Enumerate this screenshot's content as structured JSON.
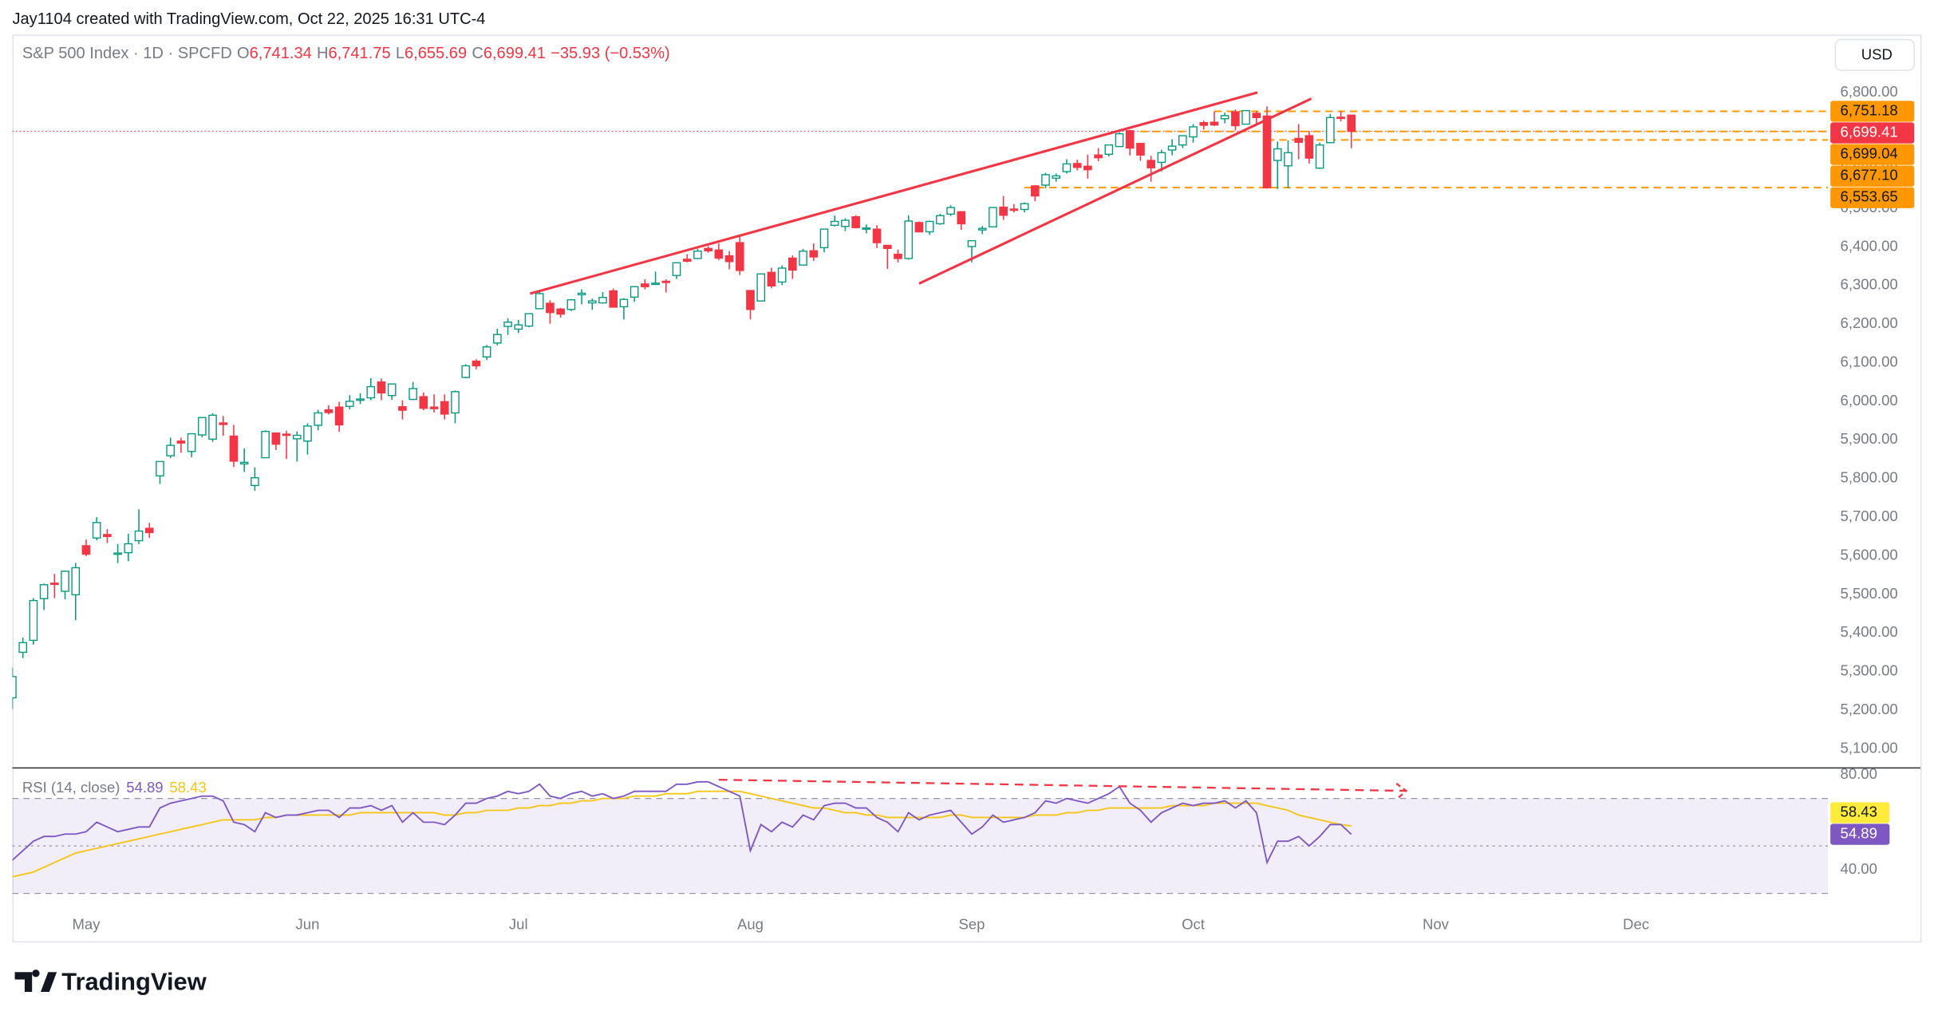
{
  "attribution": "Jay1104 created with TradingView.com, Oct 22, 2025 16:31 UTC-4",
  "currency": "USD",
  "logo": "TradingView",
  "chart_data": {
    "type": "candlestick",
    "legend": {
      "symbol": "S&P 500 Index · 1D · SPCFD",
      "items": [
        {
          "key": "O",
          "value": "6,741.34"
        },
        {
          "key": "H",
          "value": "6,741.75"
        },
        {
          "key": "L",
          "value": "6,655.69"
        },
        {
          "key": "C",
          "value": "6,699.41"
        }
      ],
      "change": "−35.93 (−0.53%)"
    },
    "open": [
      5232,
      5350,
      5381,
      5489,
      5529,
      5508,
      5499,
      5626,
      5646,
      5655,
      5605,
      5608,
      5639,
      5671,
      5807,
      5859,
      5897,
      5870,
      5913,
      5902,
      5944,
      5910,
      5838,
      5782,
      5854,
      5918,
      5915,
      5903,
      5897,
      5938,
      5978,
      5985,
      5987,
      6005,
      6009,
      6050,
      6015,
      5986,
      6005,
      6012,
      5985,
      5999,
      5970,
      6062,
      6104,
      6115,
      6151,
      6194,
      6187,
      6195,
      6240,
      6254,
      6239,
      6238,
      6276,
      6255,
      6255,
      6286,
      6245,
      6270,
      6304,
      6305,
      6311,
      6326,
      6368,
      6370,
      6396,
      6392,
      6377,
      6411,
      6287,
      6260,
      6334,
      6309,
      6371,
      6353,
      6390,
      6398,
      6456,
      6453,
      6478,
      6446,
      6446,
      6404,
      6381,
      6370,
      6463,
      6439,
      6460,
      6485,
      6491,
      6401,
      6444,
      6452,
      6503,
      6498,
      6497,
      6558,
      6560,
      6578,
      6595,
      6616,
      6609,
      6638,
      6640,
      6660,
      6701,
      6668,
      6624,
      6619,
      6651,
      6664,
      6685,
      6722,
      6723,
      6732,
      6750,
      6718,
      6746,
      6739,
      6624,
      6610,
      6681,
      6688,
      6604,
      6670,
      6736,
      6741.34
    ],
    "high": [
      5310,
      5388,
      5490,
      5528,
      5553,
      5562,
      5581,
      5642,
      5700,
      5669,
      5630,
      5657,
      5720,
      5685,
      5845,
      5906,
      5906,
      5917,
      5959,
      5969,
      5962,
      5939,
      5878,
      5829,
      5925,
      5919,
      5924,
      5922,
      5943,
      5978,
      5990,
      5999,
      6016,
      6021,
      6060,
      6059,
      6046,
      6003,
      6050,
      6023,
      6018,
      6018,
      6028,
      6096,
      6109,
      6146,
      6188,
      6215,
      6211,
      6228,
      6285,
      6262,
      6242,
      6265,
      6290,
      6266,
      6283,
      6292,
      6267,
      6297,
      6316,
      6336,
      6316,
      6360,
      6381,
      6395,
      6402,
      6409,
      6389,
      6427,
      6288,
      6331,
      6346,
      6352,
      6378,
      6395,
      6409,
      6447,
      6481,
      6474,
      6482,
      6458,
      6456,
      6404,
      6393,
      6482,
      6466,
      6468,
      6486,
      6508,
      6493,
      6416,
      6454,
      6503,
      6532,
      6511,
      6515,
      6560,
      6592,
      6590,
      6627,
      6626,
      6639,
      6656,
      6665,
      6697,
      6703,
      6670,
      6636,
      6652,
      6679,
      6689,
      6718,
      6727,
      6751,
      6748,
      6756,
      6754,
      6751,
      6764,
      6673,
      6676,
      6718,
      6700,
      6670,
      6744,
      6752,
      6741.75
    ],
    "low": [
      5203,
      5335,
      5370,
      5459,
      5490,
      5487,
      5433,
      5599,
      5640,
      5633,
      5581,
      5586,
      5630,
      5646,
      5786,
      5853,
      5867,
      5855,
      5907,
      5895,
      5911,
      5830,
      5817,
      5768,
      5853,
      5874,
      5851,
      5844,
      5862,
      5925,
      5966,
      5921,
      5979,
      5993,
      6003,
      6003,
      6004,
      5953,
      6003,
      5977,
      5971,
      5953,
      5943,
      6060,
      6083,
      6107,
      6145,
      6172,
      6177,
      6192,
      6240,
      6201,
      6217,
      6234,
      6251,
      6237,
      6253,
      6243,
      6212,
      6258,
      6290,
      6303,
      6282,
      6317,
      6360,
      6368,
      6385,
      6366,
      6342,
      6327,
      6212,
      6260,
      6293,
      6301,
      6317,
      6353,
      6364,
      6386,
      6453,
      6441,
      6448,
      6435,
      6397,
      6343,
      6360,
      6367,
      6438,
      6431,
      6457,
      6480,
      6444,
      6360,
      6433,
      6451,
      6470,
      6489,
      6489,
      6518,
      6552,
      6569,
      6590,
      6598,
      6577,
      6622,
      6634,
      6659,
      6637,
      6623,
      6569,
      6595,
      6637,
      6656,
      6670,
      6704,
      6713,
      6720,
      6702,
      6717,
      6717,
      6551,
      6550,
      6552,
      6627,
      6616,
      6602,
      6669,
      6725,
      6655.69
    ],
    "close": [
      5287,
      5375,
      5484,
      5525,
      5528,
      5560,
      5569,
      5604,
      5686,
      5650,
      5607,
      5631,
      5664,
      5660,
      5844,
      5886,
      5892,
      5916,
      5958,
      5964,
      5940,
      5845,
      5842,
      5802,
      5922,
      5889,
      5912,
      5912,
      5936,
      5970,
      5971,
      5939,
      6000,
      6006,
      6038,
      6022,
      6045,
      5977,
      6033,
      5982,
      5981,
      5967,
      6025,
      6092,
      6092,
      6141,
      6173,
      6205,
      6198,
      6227,
      6279,
      6230,
      6226,
      6263,
      6280,
      6260,
      6269,
      6244,
      6264,
      6297,
      6297,
      6306,
      6309,
      6359,
      6363,
      6389,
      6390,
      6371,
      6362,
      6339,
      6238,
      6330,
      6299,
      6345,
      6340,
      6389,
      6374,
      6446,
      6466,
      6469,
      6450,
      6449,
      6411,
      6396,
      6370,
      6467,
      6439,
      6466,
      6481,
      6502,
      6460,
      6416,
      6448,
      6502,
      6482,
      6495,
      6512,
      6532,
      6587,
      6584,
      6615,
      6606,
      6600,
      6631,
      6664,
      6693,
      6656,
      6638,
      6605,
      6644,
      6661,
      6688,
      6711,
      6715,
      6716,
      6740,
      6714,
      6753,
      6735,
      6553,
      6654,
      6644,
      6671,
      6630,
      6664,
      6735,
      6735,
      6699.41
    ],
    "up_color": "#089981",
    "down_color": "#f23645",
    "xlim": [
      0,
      172.2
    ],
    "xticks": [
      {
        "value": 7,
        "label": "May"
      },
      {
        "value": 28,
        "label": "Jun"
      },
      {
        "value": 48,
        "label": "Jul"
      },
      {
        "value": 70,
        "label": "Aug"
      },
      {
        "value": 91,
        "label": "Sep"
      },
      {
        "value": 112,
        "label": "Oct"
      },
      {
        "value": 135,
        "label": "Nov"
      },
      {
        "value": 154,
        "label": "Dec"
      }
    ],
    "ylim": [
      5052,
      6950
    ],
    "yticks": [
      {
        "value": 5100,
        "label": "5,100.00"
      },
      {
        "value": 5200,
        "label": "5,200.00"
      },
      {
        "value": 5300,
        "label": "5,300.00"
      },
      {
        "value": 5400,
        "label": "5,400.00"
      },
      {
        "value": 5500,
        "label": "5,500.00"
      },
      {
        "value": 5600,
        "label": "5,600.00"
      },
      {
        "value": 5700,
        "label": "5,700.00"
      },
      {
        "value": 5800,
        "label": "5,800.00"
      },
      {
        "value": 5900,
        "label": "5,900.00"
      },
      {
        "value": 6000,
        "label": "6,000.00"
      },
      {
        "value": 6100,
        "label": "6,100.00"
      },
      {
        "value": 6200,
        "label": "6,200.00"
      },
      {
        "value": 6300,
        "label": "6,300.00"
      },
      {
        "value": 6400,
        "label": "6,400.00"
      },
      {
        "value": 6500,
        "label": "6,500.00"
      },
      {
        "value": 6600,
        "label": "6,600.00"
      },
      {
        "value": 6700,
        "label": "6,700.00"
      },
      {
        "value": 6800,
        "label": "6,800.00"
      }
    ],
    "grid": false,
    "price_labels": [
      {
        "value": 6751.18,
        "label": "6,751.18",
        "start": 114,
        "color": "#ff9800",
        "line": "dashed"
      },
      {
        "value": 6699.41,
        "label": "6,699.41",
        "start": 0,
        "color": "#f23645",
        "line": "dotted"
      },
      {
        "value": 6699.04,
        "label": "6,699.04",
        "start": 107,
        "color": "#ff9800",
        "line": "dashed"
      },
      {
        "value": 6677.1,
        "label": "6,677.10",
        "start": 119,
        "color": "#ff9800",
        "line": "dashed"
      },
      {
        "value": 6553.65,
        "label": "6,553.65",
        "start": 96,
        "color": "#ff9800",
        "line": "dashed"
      }
    ],
    "trendlines": [
      {
        "x": [
          49.1,
          118.1
        ],
        "y": [
          6279,
          6800
        ],
        "color": "#f23645"
      },
      {
        "x": [
          86,
          123.2
        ],
        "y": [
          6305,
          6784
        ],
        "color": "#f23645"
      }
    ],
    "rsi": {
      "label": "RSI (14, close)",
      "color": "#7e57c2",
      "ma_color": "#f5c518",
      "values": [
        44,
        48,
        52,
        54,
        54,
        55,
        55,
        56,
        60,
        58,
        56,
        57,
        58,
        58,
        66,
        68,
        69,
        70,
        71,
        71,
        69,
        60,
        59,
        56,
        64,
        62,
        63,
        63,
        64,
        65,
        65,
        62,
        66,
        66,
        67,
        65,
        67,
        60,
        64,
        60,
        60,
        59,
        63,
        68,
        68,
        70,
        71,
        73,
        72,
        73,
        76,
        71,
        70,
        72,
        73,
        71,
        72,
        70,
        71,
        73,
        73,
        73,
        73,
        76,
        76,
        77,
        77,
        75,
        73,
        71,
        48,
        59,
        56,
        60,
        58,
        63,
        61,
        67,
        68,
        68,
        66,
        66,
        62,
        60,
        56,
        64,
        61,
        63,
        64,
        65,
        60,
        55,
        58,
        63,
        60,
        61,
        62,
        64,
        69,
        68,
        70,
        69,
        68,
        70,
        72,
        75,
        68,
        65,
        60,
        64,
        66,
        68,
        67,
        68,
        68,
        69,
        66,
        69,
        64,
        43,
        52,
        52,
        54,
        50,
        54,
        59,
        59,
        54.89
      ],
      "ma_values": [
        37,
        38,
        39,
        41,
        43,
        45,
        47,
        48,
        49,
        50,
        51,
        52,
        53,
        54,
        55,
        56,
        57,
        58,
        59,
        60,
        61,
        61,
        61,
        61,
        62,
        62,
        63,
        63,
        63,
        63,
        63,
        63,
        63,
        64,
        64,
        64,
        64,
        64,
        64,
        64,
        64,
        63,
        63,
        64,
        64,
        65,
        65,
        65,
        66,
        66,
        67,
        67,
        68,
        68,
        69,
        69,
        70,
        70,
        70,
        71,
        71,
        71,
        72,
        72,
        72,
        73,
        73,
        73,
        73,
        73,
        72,
        71,
        70,
        69,
        68,
        67,
        66,
        66,
        65,
        64,
        64,
        63,
        63,
        62,
        62,
        62,
        62,
        62,
        62,
        63,
        63,
        62,
        62,
        62,
        62,
        62,
        62,
        63,
        63,
        63,
        64,
        64,
        65,
        65,
        66,
        66,
        66,
        66,
        66,
        66,
        67,
        67,
        67,
        67,
        68,
        68,
        68,
        68,
        68,
        67,
        66,
        65,
        63,
        62,
        61,
        60,
        59,
        58.43
      ],
      "ylim": [
        21.8,
        82.6
      ],
      "yticks": [
        {
          "value": 80,
          "label": "80.00"
        },
        {
          "value": 40,
          "label": "40.00"
        }
      ],
      "levels": [
        70,
        50,
        30
      ],
      "divergence": {
        "x": [
          67,
          132.2
        ],
        "y": [
          77.9,
          73.2
        ],
        "color": "#f23645"
      }
    }
  }
}
